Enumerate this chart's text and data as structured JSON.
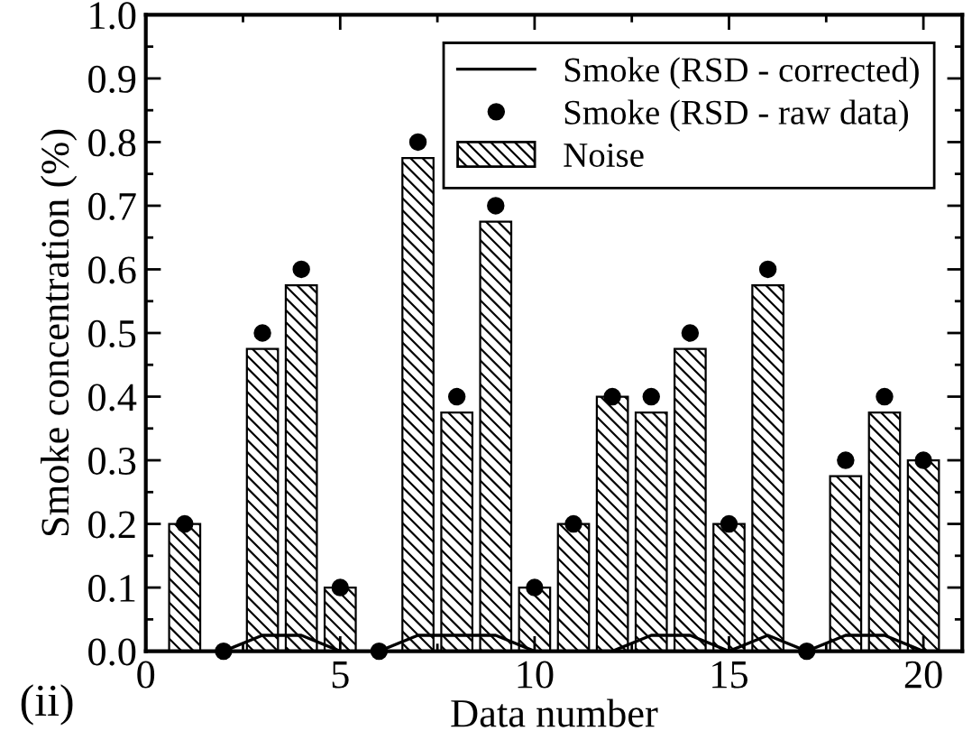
{
  "chart_data": {
    "type": "bar",
    "xlabel": "Data number",
    "ylabel": "Smoke concentration (%)",
    "x": [
      1,
      2,
      3,
      4,
      5,
      6,
      7,
      8,
      9,
      10,
      11,
      12,
      13,
      14,
      15,
      16,
      17,
      18,
      19,
      20
    ],
    "series": [
      {
        "name": "Noise",
        "color": "#000000",
        "values": [
          0.2,
          0,
          0.475,
          0.575,
          0.1,
          0,
          0.775,
          0.375,
          0.675,
          0.1,
          0.2,
          0.4,
          0.375,
          0.475,
          0.2,
          0.575,
          0,
          0.275,
          0.375,
          0.3
        ]
      },
      {
        "name": "Smoke (RSD - raw data)",
        "type": "scatter",
        "color": "#000000",
        "values": [
          0.2,
          0,
          0.5,
          0.6,
          0.1,
          0,
          0.8,
          0.4,
          0.7,
          0.1,
          0.2,
          0.4,
          0.4,
          0.5,
          0.2,
          0.6,
          0,
          0.3,
          0.4,
          0.3
        ]
      },
      {
        "name": "Smoke (RSD - corrected)",
        "type": "line",
        "color": "#000000",
        "values": [
          0,
          0,
          0.025,
          0.025,
          0,
          0,
          0.025,
          0.025,
          0.025,
          0,
          0,
          0,
          0.025,
          0.025,
          0,
          0.025,
          0,
          0.025,
          0.025,
          0
        ]
      }
    ],
    "xlim": [
      0,
      21
    ],
    "xticks": [
      0,
      5,
      10,
      15,
      20
    ],
    "ylim": [
      0,
      1.0
    ],
    "yticks": [
      {
        "value": 0,
        "label": "0.0"
      },
      0.1,
      0.2,
      0.3,
      0.4,
      0.5,
      0.6,
      0.7,
      0.8,
      0.9,
      {
        "value": 1.0,
        "label": "1.0"
      }
    ],
    "legend": "top right",
    "grid": false,
    "annotations": [
      "(ii)"
    ]
  }
}
